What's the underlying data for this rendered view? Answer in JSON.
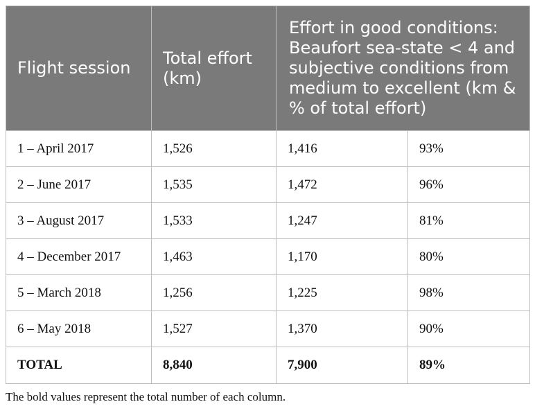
{
  "table": {
    "headers": [
      "Flight session",
      "Total effort (km)",
      "Effort in good conditions: Beaufort sea-state < 4 and subjective conditions from medium to excellent (km & % of total effort)"
    ],
    "rows": [
      [
        "1 – April 2017",
        "1,526",
        "1,416",
        "93%"
      ],
      [
        "2 – June 2017",
        "1,535",
        "1,472",
        "96%"
      ],
      [
        "3 – August 2017",
        "1,533",
        "1,247",
        "81%"
      ],
      [
        "4 – December 2017",
        "1,463",
        "1,170",
        "80%"
      ],
      [
        "5 – March 2018",
        "1,256",
        "1,225",
        "98%"
      ],
      [
        "6 – May 2018",
        "1,527",
        "1,370",
        "90%"
      ],
      [
        "TOTAL",
        "8,840",
        "7,900",
        "89%"
      ]
    ]
  },
  "footnote": "The bold values represent the total number of each column."
}
